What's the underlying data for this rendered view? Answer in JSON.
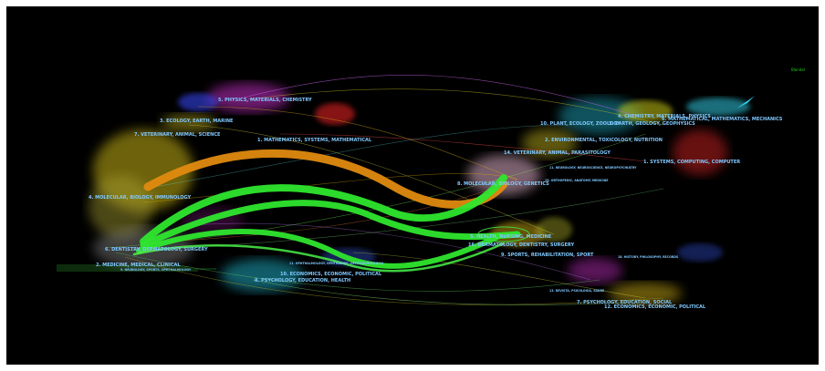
{
  "legend": "Blondel",
  "left_labels": [
    "5. PHYSICS, MATERIALS, CHEMISTRY",
    "3. ECOLOGY, EARTH, MARINE",
    "7. VETERINARY, ANIMAL, SCIENCE",
    "1. MATHEMATICS, SYSTEMS, MATHEMATICAL",
    "4. MOLECULAR, BIOLOGY, IMMUNOLOGY",
    "6. DENTISTRY, DERMATOLOGY, SURGERY",
    "2. MEDICINE, MEDICAL, CLINICAL",
    "9. NEUROLOGY, SPORTS, OPHTHALMOLOGY",
    "10. ECONOMICS, ECONOMIC, POLITICAL",
    "8. PSYCHOLOGY, EDUCATION, HEALTH",
    "11. OPHTHALMOLOGY, OPHTHALMIC, OPHTHALMOLOGICA"
  ],
  "right_labels": [
    "4. CHEMISTRY, MATERIALS, PHYSICS",
    "6. MATHEMATICAL, MATHEMATICS, MECHANICS",
    "10. PLANT, ECOLOGY, ZOOLOGY",
    "3. EARTH, GEOLOGY, GEOPHYSICS",
    "2. ENVIRONMENTAL, TOXICOLOGY, NUTRITION",
    "14. VETERINARY, ANIMAL, PARASITOLOGY",
    "1. SYSTEMS, COMPUTING, COMPUTER",
    "8. MOLECULAR, BIOLOGY, GENETICS",
    "5. HEALTH, NURSING, MEDICINE",
    "16. DERMATOLOGY, DENTISTRY, SURGERY",
    "9. SPORTS, REHABILITATION, SPORT",
    "18. HISTORY, PHILOSOPHY, RECORDS",
    "13. REVISTA, PSICOLOGIA, SAUDE",
    "7. PSYCHOLOGY, EDUCATION, SOCIAL",
    "12. ECONOMICS, ECONOMIC, POLITICAL",
    "11. NEUROLOGY, NEUROSCIENCE, NEUROPSYCHIATRY",
    "15. ORTHOPEDIC, ANATOMY, MEDICINE"
  ],
  "colors": {
    "label": "#7fc8ff",
    "legend": "#19d619",
    "flow_green": "#2ee62e",
    "flow_orange": "#e08a10",
    "background": "#000000"
  }
}
